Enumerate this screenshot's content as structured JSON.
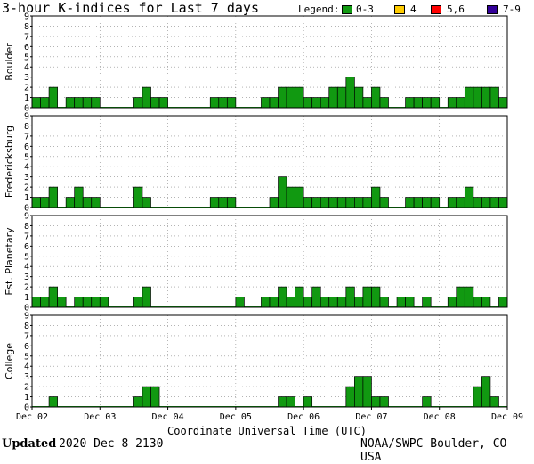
{
  "title": "3-hour K-indices for Last 7 days",
  "legend": {
    "title": "Legend:",
    "items": [
      {
        "label": "0-3",
        "color": "#119911"
      },
      {
        "label": "4",
        "color": "#ffcc00"
      },
      {
        "label": "5,6",
        "color": "#ff0000"
      },
      {
        "label": "7-9",
        "color": "#330099"
      }
    ]
  },
  "footer": {
    "updated_label": "Updated",
    "updated_value": "2020 Dec  8 2130",
    "source": "NOAA/SWPC Boulder, CO USA"
  },
  "chart_data": {
    "type": "bar",
    "xlabel": "Coordinate Universal Time (UTC)",
    "x_ticks": [
      "Dec 02",
      "Dec 03",
      "Dec 04",
      "Dec 05",
      "Dec 06",
      "Dec 07",
      "Dec 08",
      "Dec 09"
    ],
    "ylim": [
      0,
      9
    ],
    "y_ticks": [
      0,
      1,
      2,
      3,
      4,
      5,
      6,
      7,
      8,
      9
    ],
    "bars_per_day": 8,
    "grid": true,
    "panels": [
      {
        "name": "Boulder",
        "values": [
          1,
          1,
          2,
          0,
          1,
          1,
          1,
          1,
          0,
          0,
          0,
          0,
          1,
          2,
          1,
          1,
          0,
          0,
          0,
          0,
          0,
          1,
          1,
          1,
          0,
          0,
          0,
          1,
          1,
          2,
          2,
          2,
          1,
          1,
          1,
          2,
          2,
          3,
          2,
          1,
          2,
          1,
          0,
          0,
          1,
          1,
          1,
          1,
          0,
          1,
          1,
          2,
          2,
          2,
          2,
          1,
          0
        ]
      },
      {
        "name": "Fredericksburg",
        "values": [
          1,
          1,
          2,
          0,
          1,
          2,
          1,
          1,
          0,
          0,
          0,
          0,
          2,
          1,
          0,
          0,
          0,
          0,
          0,
          0,
          0,
          1,
          1,
          1,
          0,
          0,
          0,
          0,
          1,
          3,
          2,
          2,
          1,
          1,
          1,
          1,
          1,
          1,
          1,
          1,
          2,
          1,
          0,
          0,
          1,
          1,
          1,
          1,
          0,
          1,
          1,
          2,
          1,
          1,
          1,
          1,
          0
        ]
      },
      {
        "name": "Est. Planetary",
        "values": [
          1,
          1,
          2,
          1,
          0,
          1,
          1,
          1,
          1,
          0,
          0,
          0,
          1,
          2,
          0,
          0,
          0,
          0,
          0,
          0,
          0,
          0,
          0,
          0,
          1,
          0,
          0,
          1,
          1,
          2,
          1,
          2,
          1,
          2,
          1,
          1,
          1,
          2,
          1,
          2,
          2,
          1,
          0,
          1,
          1,
          0,
          1,
          0,
          0,
          1,
          2,
          2,
          1,
          1,
          0,
          1,
          0
        ]
      },
      {
        "name": "College",
        "values": [
          0,
          0,
          1,
          0,
          0,
          0,
          0,
          0,
          0,
          0,
          0,
          0,
          1,
          2,
          2,
          0,
          0,
          0,
          0,
          0,
          0,
          0,
          0,
          0,
          0,
          0,
          0,
          0,
          0,
          1,
          1,
          0,
          1,
          0,
          0,
          0,
          0,
          2,
          3,
          3,
          1,
          1,
          0,
          0,
          0,
          0,
          1,
          0,
          0,
          0,
          0,
          0,
          2,
          3,
          1,
          0,
          0
        ]
      }
    ]
  }
}
